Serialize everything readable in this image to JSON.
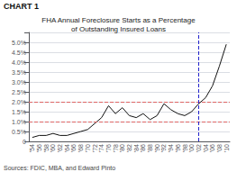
{
  "chart_data": {
    "type": "line",
    "title": "FHA Annual Foreclosure Starts as a Percentage\nof Outstanding Insured Loans",
    "annotations": [
      "CHART 1",
      "Sources: FDIC, MBA, and Edward Pinto"
    ],
    "categories": [
      "'54",
      "'56",
      "'58",
      "'60",
      "'62",
      "'64",
      "'66",
      "'68",
      "'70",
      "'72",
      "'74",
      "'76",
      "'78",
      "'80",
      "'82",
      "'84",
      "'86",
      "'88",
      "'90",
      "'92",
      "'94",
      "'96",
      "'98",
      "'00",
      "'02",
      "'04",
      "'06",
      "'08",
      "'10"
    ],
    "values": [
      0.002,
      0.003,
      0.003,
      0.004,
      0.003,
      0.003,
      0.004,
      0.005,
      0.006,
      0.009,
      0.012,
      0.018,
      0.014,
      0.017,
      0.013,
      0.012,
      0.014,
      0.011,
      0.013,
      0.019,
      0.016,
      0.014,
      0.013,
      0.015,
      0.019,
      0.022,
      0.028,
      0.038,
      0.049
    ],
    "color": "#111111",
    "ylim": [
      0.0,
      0.055
    ],
    "yticks": [
      0,
      {
        "value": 0.005,
        "label": "0.5%"
      },
      {
        "value": 0.01,
        "label": "1.0%"
      },
      {
        "value": 0.015,
        "label": "1.5%"
      },
      {
        "value": 0.02,
        "label": "2.0%"
      },
      {
        "value": 0.025,
        "label": "2.5%"
      },
      {
        "value": 0.03,
        "label": "3.0%"
      },
      {
        "value": 0.035,
        "label": "3.5%"
      },
      {
        "value": 0.04,
        "label": "4.0%"
      },
      {
        "value": 0.045,
        "label": "4.5%"
      },
      {
        "value": 0.05,
        "label": "5.0%"
      }
    ],
    "reference_lines": [
      {
        "axis": "y",
        "value": 0.018,
        "color": "#dd6666",
        "line_style": "dashed"
      },
      {
        "axis": "y",
        "value": 0.008,
        "color": "#dd6666",
        "line_style": "dashed"
      },
      {
        "axis": "x",
        "value": "'02",
        "color": "#2222cc",
        "line_style": "dashed"
      }
    ],
    "grid": true
  }
}
